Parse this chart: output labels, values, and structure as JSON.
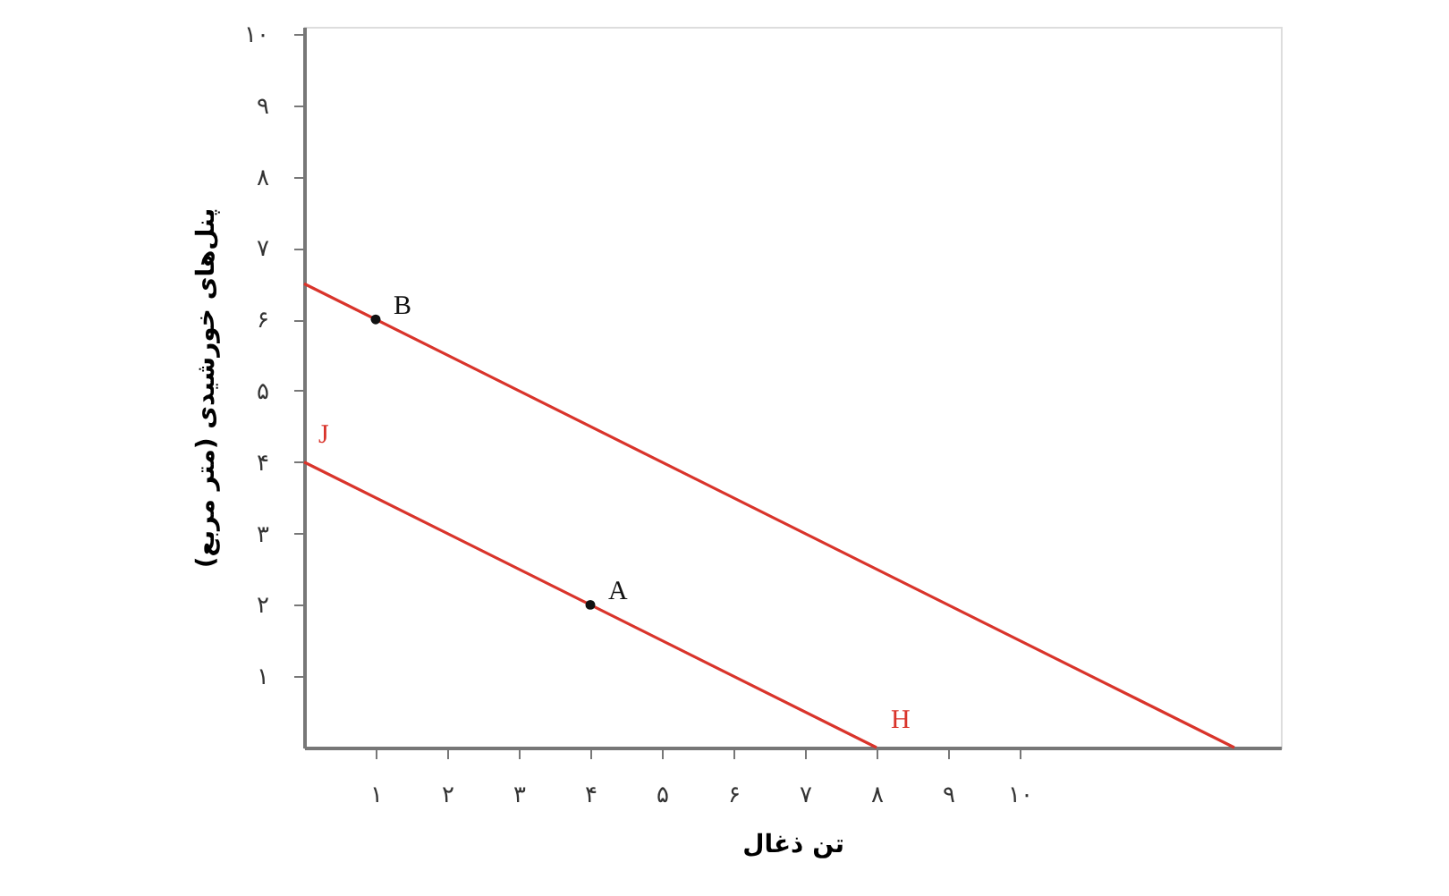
{
  "chart_data": {
    "type": "line",
    "xlabel": "تن ذغال",
    "ylabel": "پنل‌های خورشیدی (متر مربع)",
    "xlim": [
      0,
      13.65
    ],
    "ylim": [
      0,
      10.1
    ],
    "xticks": [
      {
        "value": 1,
        "label": "۱"
      },
      {
        "value": 2,
        "label": "۲"
      },
      {
        "value": 3,
        "label": "۳"
      },
      {
        "value": 4,
        "label": "۴"
      },
      {
        "value": 5,
        "label": "۵"
      },
      {
        "value": 6,
        "label": "۶"
      },
      {
        "value": 7,
        "label": "۷"
      },
      {
        "value": 8,
        "label": "۸"
      },
      {
        "value": 9,
        "label": "۹"
      },
      {
        "value": 10,
        "label": "۱۰"
      }
    ],
    "yticks": [
      {
        "value": 1,
        "label": "۱"
      },
      {
        "value": 2,
        "label": "۲"
      },
      {
        "value": 3,
        "label": "۳"
      },
      {
        "value": 4,
        "label": "۴"
      },
      {
        "value": 5,
        "label": "۵"
      },
      {
        "value": 6,
        "label": "۶"
      },
      {
        "value": 7,
        "label": "۷"
      },
      {
        "value": 8,
        "label": "۸"
      },
      {
        "value": 9,
        "label": "۹"
      },
      {
        "value": 10,
        "label": "۱۰"
      }
    ],
    "grid": false,
    "marker": "none",
    "series": [
      {
        "color": "#d9342b",
        "x": [
          0,
          13
        ],
        "values": [
          6.5,
          0
        ]
      },
      {
        "color": "#d9342b",
        "x": [
          0,
          8
        ],
        "values": [
          4,
          0
        ]
      },
      {
        "type": "scatter",
        "marker": "circle",
        "color": "#111111",
        "x": [
          1,
          4
        ],
        "values": [
          6,
          2
        ]
      }
    ],
    "annotations": [
      {
        "text": "B",
        "x": 1,
        "y": 6
      },
      {
        "text": "A",
        "x": 4,
        "y": 2
      },
      {
        "text": "J",
        "x": 0,
        "y": 4
      },
      {
        "text": "H",
        "x": 8,
        "y": 0
      }
    ]
  }
}
